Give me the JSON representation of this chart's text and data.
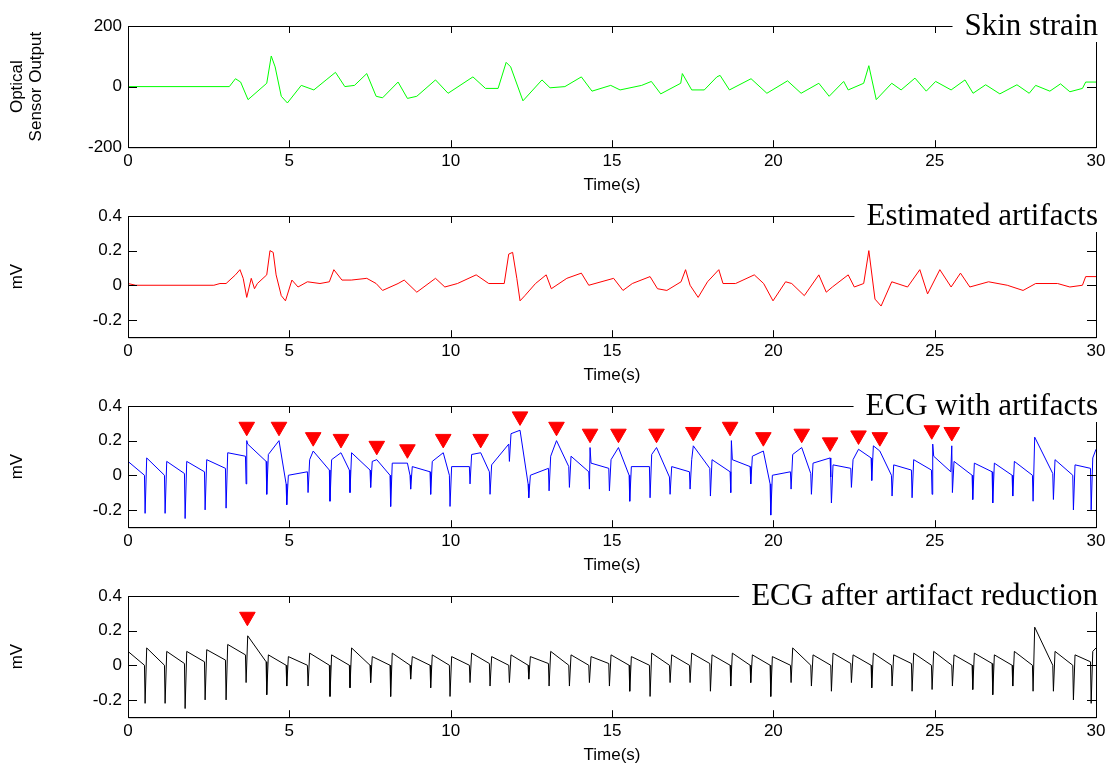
{
  "chart_data": [
    {
      "type": "line",
      "title": "Skin strain",
      "xlabel": "Time(s)",
      "ylabel": "Optical Sensor Output",
      "xlim": [
        0,
        30
      ],
      "xticks": [
        0,
        5,
        10,
        15,
        20,
        25,
        30
      ],
      "ylim": [
        -200,
        200
      ],
      "yticks": [
        -200,
        0,
        200
      ],
      "series": [
        {
          "color": "#00ff00",
          "x": [
            0,
            3.14,
            3.33,
            3.49,
            3.72,
            4.3,
            4.44,
            4.56,
            4.75,
            4.94,
            5.37,
            5.76,
            6.14,
            6.43,
            6.72,
            7.02,
            7.4,
            7.69,
            7.89,
            8.37,
            8.66,
            8.95,
            9.53,
            9.92,
            10.69,
            11.08,
            11.47,
            11.72,
            11.86,
            12.24,
            12.83,
            13.08,
            13.54,
            14.05,
            14.38,
            14.96,
            15.25,
            15.92,
            16.22,
            16.51,
            17.13,
            17.18,
            17.47,
            17.86,
            18.25,
            18.35,
            18.64,
            19.31,
            19.8,
            20.44,
            20.86,
            21.41,
            21.73,
            22.18,
            22.32,
            22.8,
            22.96,
            23.19,
            23.67,
            23.96,
            24.39,
            24.74,
            25.03,
            25.51,
            25.94,
            26.19,
            26.58,
            27.02,
            27.55,
            27.93,
            28.13,
            28.57,
            28.9,
            29.19,
            29.58,
            29.68,
            30
          ],
          "values": [
            0,
            0,
            26,
            15,
            -43,
            11,
            101,
            65,
            -32,
            -54,
            4,
            -11,
            22,
            47,
            0,
            4,
            43,
            -32,
            -37,
            15,
            -39,
            -32,
            22,
            -22,
            32,
            -6,
            -6,
            80,
            65,
            -47,
            22,
            -4,
            0,
            32,
            -15,
            4,
            -11,
            4,
            17,
            -24,
            11,
            43,
            -11,
            -11,
            32,
            37,
            -11,
            26,
            -22,
            19,
            -22,
            11,
            -32,
            17,
            -11,
            11,
            69,
            -43,
            11,
            -11,
            28,
            -15,
            17,
            -11,
            22,
            -22,
            6,
            -24,
            6,
            -22,
            4,
            -15,
            9,
            -17,
            -6,
            15,
            15
          ]
        }
      ]
    },
    {
      "type": "line",
      "title": "Estimated artifacts",
      "xlabel": "Time(s)",
      "ylabel": "mV",
      "xlim": [
        0,
        30
      ],
      "xticks": [
        0,
        5,
        10,
        15,
        20,
        25,
        30
      ],
      "ylim": [
        -0.3,
        0.4
      ],
      "yticks": [
        -0.2,
        0,
        0.2,
        0.4
      ],
      "series": [
        {
          "color": "#ff0000",
          "x": [
            0,
            0.24,
            2.66,
            2.85,
            3.04,
            3.33,
            3.47,
            3.57,
            3.68,
            3.82,
            3.92,
            4.01,
            4.3,
            4.4,
            4.5,
            4.59,
            4.75,
            4.88,
            5.08,
            5.27,
            5.56,
            5.95,
            6.24,
            6.38,
            6.63,
            6.92,
            7.4,
            7.69,
            7.89,
            8.37,
            8.56,
            8.95,
            9.53,
            9.82,
            10.21,
            10.79,
            11.18,
            11.66,
            11.8,
            11.92,
            12.05,
            12.15,
            12.3,
            12.63,
            12.96,
            13.12,
            13.6,
            14.05,
            14.28,
            15.05,
            15.34,
            15.63,
            16.18,
            16.41,
            16.7,
            17.14,
            17.28,
            17.42,
            17.67,
            17.96,
            18.31,
            18.44,
            18.83,
            19.41,
            19.7,
            19.99,
            20.38,
            20.57,
            20.96,
            21.41,
            21.64,
            21.83,
            22.32,
            22.51,
            22.8,
            22.96,
            23.15,
            23.34,
            23.67,
            24.16,
            24.54,
            24.78,
            25.16,
            25.51,
            25.8,
            26.09,
            26.67,
            27.25,
            27.74,
            28.13,
            28.81,
            29.19,
            29.58,
            29.68,
            30
          ],
          "values": [
            0.01,
            0,
            0,
            0.01,
            0.01,
            0.06,
            0.09,
            0.04,
            -0.07,
            0.04,
            -0.02,
            0.01,
            0.06,
            0.2,
            0.19,
            0.06,
            -0.06,
            -0.09,
            0.03,
            -0.01,
            0.02,
            0.01,
            0.02,
            0.09,
            0.03,
            0.03,
            0.04,
            0.01,
            -0.03,
            0.01,
            0.03,
            -0.04,
            0.04,
            -0.01,
            0.01,
            0.06,
            0.01,
            0.01,
            0.18,
            0.19,
            0.04,
            -0.09,
            -0.06,
            0.01,
            0.06,
            -0.02,
            0.04,
            0.07,
            0,
            0.04,
            -0.03,
            0.01,
            0.05,
            -0.02,
            -0.03,
            0.02,
            0.09,
            0,
            -0.07,
            0.02,
            0.09,
            0.01,
            0.01,
            0.06,
            0.01,
            -0.09,
            0.02,
            0.01,
            -0.06,
            0.06,
            -0.04,
            -0.01,
            0.06,
            -0.01,
            0.01,
            0.2,
            -0.08,
            -0.12,
            0.02,
            -0.01,
            0.09,
            -0.05,
            0.09,
            -0.01,
            0.07,
            -0.01,
            0.02,
            0,
            -0.03,
            0.01,
            0.01,
            -0.01,
            0,
            0.05,
            0.05
          ]
        }
      ]
    },
    {
      "type": "line",
      "title": "ECG with artifacts",
      "xlabel": "Time(s)",
      "ylabel": "mV",
      "xlim": [
        0,
        30
      ],
      "xticks": [
        0,
        5,
        10,
        15,
        20,
        25,
        30
      ],
      "ylim": [
        -0.3,
        0.4
      ],
      "yticks": [
        -0.2,
        0,
        0.2,
        0.4
      ],
      "series": [
        {
          "color": "#0000ff",
          "x": [
            0,
            0.51,
            0.53,
            0.58,
            1.13,
            1.15,
            1.2,
            1.75,
            1.77,
            1.82,
            2.37,
            2.39,
            2.44,
            3.02,
            3.04,
            3.09,
            3.64,
            3.66,
            3.68,
            3.71,
            4.28,
            4.3,
            4.35,
            4.68,
            4.9,
            4.92,
            4.97,
            5.56,
            5.58,
            5.63,
            5.74,
            6.24,
            6.26,
            6.31,
            6.6,
            6.86,
            6.88,
            6.93,
            7.5,
            7.52,
            7.57,
            7.71,
            8.12,
            8.14,
            8.19,
            8.66,
            8.74,
            8.76,
            8.81,
            9.36,
            9.38,
            9.43,
            9.77,
            9.96,
            9.98,
            10.03,
            10.58,
            10.6,
            10.65,
            10.93,
            11.2,
            11.22,
            11.27,
            11.8,
            11.82,
            11.87,
            12.15,
            12.4,
            12.42,
            12.47,
            13.03,
            13.05,
            13.1,
            13.28,
            13.66,
            13.68,
            13.73,
            14.28,
            14.3,
            14.32,
            14.35,
            14.9,
            14.92,
            14.97,
            15.2,
            15.53,
            15.55,
            15.6,
            16.16,
            16.18,
            16.23,
            16.38,
            16.78,
            16.8,
            16.85,
            17.4,
            17.42,
            17.47,
            17.52,
            18.03,
            18.05,
            18.1,
            18.66,
            18.68,
            18.7,
            18.73,
            19.28,
            19.3,
            19.35,
            19.69,
            19.9,
            19.92,
            19.97,
            20.53,
            20.55,
            20.6,
            20.88,
            21.16,
            21.18,
            21.23,
            21.76,
            21.78,
            21.8,
            21.85,
            22.4,
            22.42,
            22.47,
            22.64,
            23.03,
            23.05,
            23.1,
            23.3,
            23.66,
            23.68,
            23.73,
            24.28,
            24.3,
            24.35,
            24.9,
            24.92,
            24.94,
            24.97,
            25.5,
            25.53,
            25.55,
            25.6,
            26.16,
            26.18,
            26.23,
            26.78,
            26.8,
            26.85,
            27.4,
            27.42,
            27.47,
            28.03,
            28.05,
            28.1,
            28.66,
            28.68,
            28.73,
            29.28,
            29.3,
            29.35,
            29.83,
            29.85,
            29.9,
            30
          ],
          "values": [
            0.08,
            0,
            -0.22,
            0.1,
            0,
            -0.22,
            0.08,
            0.01,
            -0.25,
            0.08,
            0.02,
            -0.2,
            0.09,
            0.04,
            -0.19,
            0.13,
            0.11,
            -0.05,
            0.2,
            0.18,
            0.08,
            -0.11,
            0.12,
            0.2,
            -0.05,
            -0.17,
            0,
            0.02,
            -0.1,
            0.09,
            0.14,
            0.03,
            -0.15,
            0.09,
            0.13,
            0.03,
            -0.1,
            0.13,
            0.03,
            -0.07,
            0.08,
            0.09,
            0,
            -0.18,
            0.07,
            0.07,
            0,
            -0.08,
            0.05,
            0.02,
            -0.11,
            0.08,
            0.13,
            0,
            -0.18,
            0.05,
            0.05,
            -0.05,
            0.12,
            0.13,
            0.02,
            -0.11,
            0.06,
            0.18,
            0.08,
            0.24,
            0.26,
            -0.05,
            -0.13,
            0,
            0.04,
            -0.09,
            0.11,
            0.2,
            0.05,
            -0.07,
            0.11,
            0.02,
            -0.08,
            0.16,
            0.07,
            0.04,
            -0.09,
            0.09,
            0.16,
            0,
            -0.15,
            0.05,
            0.05,
            -0.13,
            0.12,
            0.16,
            -0.01,
            -0.11,
            0.05,
            0.02,
            -0.08,
            0.09,
            0.17,
            0.04,
            -0.12,
            0.09,
            0.02,
            -0.1,
            0.2,
            0.09,
            0.05,
            -0.05,
            0.11,
            0.14,
            -0.05,
            -0.23,
            0,
            0.02,
            -0.08,
            0.12,
            0.16,
            0.01,
            -0.11,
            0.07,
            0.1,
            -0.01,
            -0.16,
            0.06,
            0.04,
            -0.07,
            0.09,
            0.15,
            0.1,
            -0.03,
            0.17,
            0.14,
            0,
            -0.12,
            0.06,
            0.03,
            -0.13,
            0.09,
            0.03,
            -0.11,
            0.18,
            0.11,
            0.02,
            0.17,
            -0.1,
            0.08,
            0,
            -0.14,
            0.07,
            0.02,
            -0.16,
            0.07,
            0,
            -0.12,
            0.08,
            0,
            -0.15,
            0.22,
            0.01,
            -0.14,
            0.09,
            0,
            -0.2,
            0.06,
            0.04,
            -0.2,
            0.1,
            0.15
          ]
        },
        {
          "type": "scatter",
          "marker": "triangle",
          "color": "#ff0000",
          "x": [
            3.68,
            4.68,
            5.74,
            6.6,
            7.71,
            8.66,
            9.77,
            10.93,
            12.15,
            13.28,
            14.32,
            15.2,
            16.38,
            17.52,
            18.66,
            19.69,
            20.88,
            21.76,
            22.64,
            23.3,
            24.91,
            25.53
          ],
          "values": [
            0.28,
            0.28,
            0.22,
            0.21,
            0.17,
            0.15,
            0.21,
            0.21,
            0.34,
            0.28,
            0.24,
            0.24,
            0.24,
            0.25,
            0.28,
            0.22,
            0.24,
            0.19,
            0.23,
            0.22,
            0.26,
            0.25
          ]
        }
      ]
    },
    {
      "type": "line",
      "title": "ECG after artifact reduction",
      "xlabel": "Time(s)",
      "ylabel": "mV",
      "xlim": [
        0,
        30
      ],
      "xticks": [
        0,
        5,
        10,
        15,
        20,
        25,
        30
      ],
      "ylim": [
        -0.3,
        0.4
      ],
      "yticks": [
        -0.2,
        0,
        0.2,
        0.4
      ],
      "series": [
        {
          "color": "#000000",
          "x": [
            0,
            0.51,
            0.53,
            0.58,
            1.13,
            1.15,
            1.2,
            1.75,
            1.77,
            1.82,
            2.37,
            2.39,
            2.44,
            3.02,
            3.04,
            3.09,
            3.64,
            3.66,
            3.71,
            4.28,
            4.3,
            4.35,
            4.9,
            4.92,
            4.97,
            5.56,
            5.58,
            5.63,
            6.24,
            6.26,
            6.31,
            6.86,
            6.88,
            6.93,
            7.5,
            7.52,
            7.57,
            8.12,
            8.14,
            8.19,
            8.74,
            8.76,
            8.81,
            9.36,
            9.38,
            9.43,
            9.96,
            9.98,
            10.03,
            10.58,
            10.6,
            10.65,
            11.2,
            11.22,
            11.27,
            11.8,
            11.82,
            11.87,
            12.4,
            12.42,
            12.47,
            13.03,
            13.05,
            13.1,
            13.66,
            13.68,
            13.73,
            14.28,
            14.3,
            14.35,
            14.9,
            14.92,
            14.97,
            15.53,
            15.55,
            15.6,
            16.16,
            16.18,
            16.23,
            16.78,
            16.8,
            16.85,
            17.4,
            17.42,
            17.47,
            18.03,
            18.05,
            18.1,
            18.66,
            18.68,
            18.73,
            19.28,
            19.3,
            19.35,
            19.9,
            19.92,
            19.97,
            20.53,
            20.55,
            20.6,
            21.16,
            21.18,
            21.23,
            21.78,
            21.8,
            21.85,
            22.4,
            22.42,
            22.47,
            23.03,
            23.05,
            23.1,
            23.66,
            23.68,
            23.73,
            24.28,
            24.3,
            24.35,
            24.9,
            24.92,
            24.97,
            25.53,
            25.55,
            25.6,
            26.16,
            26.18,
            26.23,
            26.78,
            26.8,
            26.85,
            27.4,
            27.42,
            27.47,
            28.03,
            28.05,
            28.1,
            28.66,
            28.68,
            28.73,
            29.28,
            29.3,
            29.35,
            29.83,
            29.85,
            29.9,
            30
          ],
          "values": [
            0.08,
            0,
            -0.22,
            0.1,
            0,
            -0.22,
            0.08,
            0.01,
            -0.25,
            0.08,
            0.02,
            -0.2,
            0.09,
            0.03,
            -0.2,
            0.12,
            0.06,
            -0.1,
            0.17,
            0.02,
            -0.17,
            0.06,
            0,
            -0.12,
            0.05,
            0,
            -0.12,
            0.07,
            0,
            -0.18,
            0.06,
            0,
            -0.13,
            0.1,
            0,
            -0.1,
            0.05,
            0,
            -0.18,
            0.07,
            0,
            -0.08,
            0.05,
            0,
            -0.13,
            0.06,
            0,
            -0.18,
            0.05,
            0,
            -0.1,
            0.07,
            0.01,
            -0.12,
            0.05,
            0,
            -0.1,
            0.06,
            0,
            -0.08,
            0.05,
            0.01,
            -0.12,
            0.08,
            0,
            -0.12,
            0.06,
            0,
            -0.1,
            0.05,
            0.01,
            -0.12,
            0.06,
            0,
            -0.15,
            0.05,
            0,
            -0.18,
            0.07,
            0,
            -0.1,
            0.06,
            0,
            -0.1,
            0.07,
            0.01,
            -0.15,
            0.06,
            0,
            -0.12,
            0.07,
            0,
            -0.1,
            0.06,
            0,
            -0.18,
            0.05,
            0,
            -0.1,
            0.1,
            0,
            -0.12,
            0.06,
            0,
            -0.15,
            0.07,
            0.01,
            -0.1,
            0.06,
            0,
            -0.13,
            0.07,
            0,
            -0.12,
            0.06,
            0.01,
            -0.15,
            0.07,
            0,
            -0.14,
            0.08,
            0,
            -0.12,
            0.06,
            0,
            -0.14,
            0.07,
            0.01,
            -0.17,
            0.06,
            0,
            -0.12,
            0.08,
            0,
            -0.15,
            0.22,
            0,
            -0.15,
            0.08,
            0,
            -0.2,
            0.06,
            0.02,
            -0.22,
            0.08,
            0.1
          ]
        },
        {
          "type": "scatter",
          "marker": "triangle",
          "color": "#ff0000",
          "x": [
            3.7
          ],
          "values": [
            0.28
          ]
        }
      ]
    }
  ]
}
